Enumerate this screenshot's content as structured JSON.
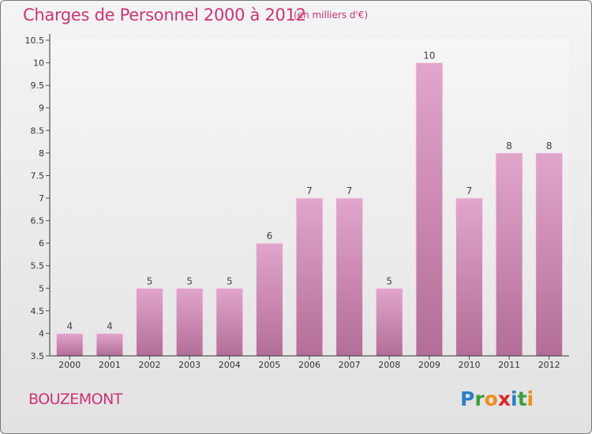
{
  "header": {
    "title": "Charges de Personnel 2000 à 2012",
    "subtitle": "(en milliers d'€)"
  },
  "footer": {
    "town": "BOUZEMONT",
    "logo_letters": [
      "P",
      "r",
      "o",
      "x",
      "i",
      "t",
      "i"
    ],
    "logo_colors": [
      "#2b7fc1",
      "#3aa03a",
      "#f08c1a",
      "#d92727",
      "#2b7fc1",
      "#3aa03a",
      "#f08c1a"
    ]
  },
  "colors": {
    "bar_top": "#e2a5cb",
    "bar_bottom": "#b26e96",
    "title": "#cc3377"
  },
  "chart_data": {
    "type": "bar",
    "categories": [
      "2000",
      "2001",
      "2002",
      "2003",
      "2004",
      "2005",
      "2006",
      "2007",
      "2008",
      "2009",
      "2010",
      "2011",
      "2012"
    ],
    "values": [
      4,
      4,
      5,
      5,
      5,
      6,
      7,
      7,
      5,
      10,
      7,
      8,
      8
    ],
    "data_labels": [
      "4",
      "4",
      "5",
      "5",
      "5",
      "6",
      "7",
      "7",
      "5",
      "10",
      "7",
      "8",
      "8"
    ],
    "title": "Charges de Personnel 2000 à 2012",
    "xlabel": "",
    "ylabel": "",
    "ylim": [
      3.5,
      10.5
    ],
    "y_ticks": [
      3.5,
      4,
      4.5,
      5,
      5.5,
      6,
      6.5,
      7,
      7.5,
      8,
      8.5,
      9,
      9.5,
      10,
      10.5
    ],
    "y_tick_labels": [
      "3.5",
      "4",
      "4.5",
      "5",
      "5.5",
      "6",
      "6.5",
      "7",
      "7.5",
      "8",
      "8.5",
      "9",
      "9.5",
      "10",
      "10.5"
    ],
    "grid": false,
    "legend": "none"
  }
}
